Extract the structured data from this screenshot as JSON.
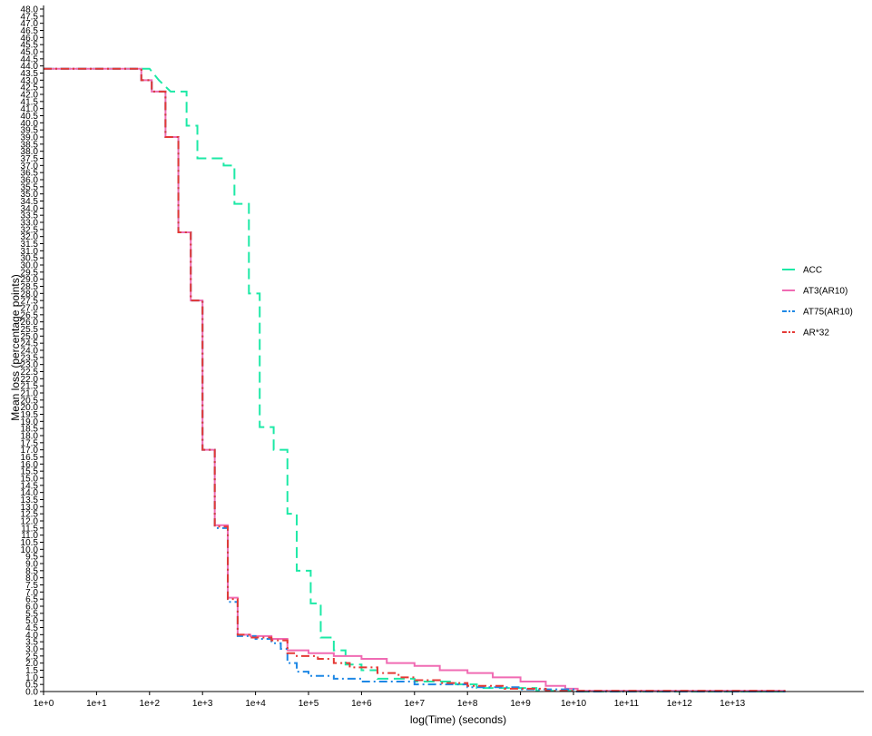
{
  "chart_data": {
    "type": "line",
    "step": true,
    "xlabel": "log(Time) (seconds)",
    "ylabel": "Mean loss (percentage points)",
    "x_scale": "log10",
    "xlim": [
      1,
      1000000000000000.0
    ],
    "ylim": [
      0,
      48
    ],
    "x_ticks": [
      {
        "value": 1,
        "label": "1e+0"
      },
      {
        "value": 10,
        "label": "1e+1"
      },
      {
        "value": 100,
        "label": "1e+2"
      },
      {
        "value": 1000,
        "label": "1e+3"
      },
      {
        "value": 10000,
        "label": "1e+4"
      },
      {
        "value": 100000,
        "label": "1e+5"
      },
      {
        "value": 1000000,
        "label": "1e+6"
      },
      {
        "value": 10000000,
        "label": "1e+7"
      },
      {
        "value": 100000000,
        "label": "1e+8"
      },
      {
        "value": 1000000000,
        "label": "1e+9"
      },
      {
        "value": 10000000000,
        "label": "1e+10"
      },
      {
        "value": 100000000000,
        "label": "1e+11"
      },
      {
        "value": 1000000000000,
        "label": "1e+12"
      },
      {
        "value": 10000000000000,
        "label": "1e+13"
      }
    ],
    "y_ticks": [
      "0.0",
      "0.5",
      "1.0",
      "1.5",
      "2.0",
      "2.5",
      "3.0",
      "3.5",
      "4.0",
      "4.5",
      "5.0",
      "5.5",
      "6.0",
      "6.5",
      "7.0",
      "7.5",
      "8.0",
      "8.5",
      "9.0",
      "9.5",
      "10.0",
      "10.5",
      "11.0",
      "11.5",
      "12.0",
      "12.5",
      "13.0",
      "13.5",
      "14.0",
      "14.5",
      "15.0",
      "15.5",
      "16.0",
      "16.5",
      "17.0",
      "17.5",
      "18.0",
      "18.5",
      "19.0",
      "19.5",
      "20.0",
      "20.5",
      "21.0",
      "21.5",
      "22.0",
      "22.5",
      "23.0",
      "23.5",
      "24.0",
      "24.5",
      "25.0",
      "25.5",
      "26.0",
      "26.5",
      "27.0",
      "27.5",
      "28.0",
      "28.5",
      "29.0",
      "29.5",
      "30.0",
      "30.5",
      "31.0",
      "31.5",
      "32.0",
      "32.5",
      "33.0",
      "33.5",
      "34.0",
      "34.5",
      "35.0",
      "35.5",
      "36.0",
      "36.5",
      "37.0",
      "37.5",
      "38.0",
      "38.5",
      "39.0",
      "39.5",
      "40.0",
      "40.5",
      "41.0",
      "41.5",
      "42.0",
      "42.5",
      "43.0",
      "43.5",
      "44.0",
      "44.5",
      "45.0",
      "45.5",
      "46.0",
      "46.5",
      "47.0",
      "47.5",
      "48.0"
    ],
    "grid": false,
    "legend_position": "right",
    "series": [
      {
        "name": "ACC",
        "color": "#1de9a6",
        "dash": "long-dash",
        "points": [
          [
            1,
            43.8
          ],
          [
            100,
            43.8
          ],
          [
            150,
            43.0
          ],
          [
            250,
            42.2
          ],
          [
            500,
            42.2
          ],
          [
            500,
            39.8
          ],
          [
            800,
            39.8
          ],
          [
            800,
            37.5
          ],
          [
            2500,
            37.5
          ],
          [
            2500,
            37.0
          ],
          [
            4000,
            37.0
          ],
          [
            4000,
            34.3
          ],
          [
            7500,
            34.3
          ],
          [
            7500,
            28.0
          ],
          [
            12000,
            28.0
          ],
          [
            12000,
            18.6
          ],
          [
            22000,
            18.6
          ],
          [
            22000,
            17.0
          ],
          [
            40000,
            17.0
          ],
          [
            40000,
            12.5
          ],
          [
            60000,
            12.5
          ],
          [
            60000,
            8.5
          ],
          [
            110000,
            8.5
          ],
          [
            110000,
            6.2
          ],
          [
            170000,
            6.2
          ],
          [
            170000,
            3.8
          ],
          [
            300000,
            3.8
          ],
          [
            300000,
            2.9
          ],
          [
            500000,
            2.9
          ],
          [
            500000,
            1.9
          ],
          [
            1000000,
            1.9
          ],
          [
            1000000,
            1.5
          ],
          [
            2000000,
            1.5
          ],
          [
            2000000,
            0.9
          ],
          [
            10000000,
            0.9
          ],
          [
            10000000,
            0.7
          ],
          [
            60000000,
            0.7
          ],
          [
            60000000,
            0.5
          ],
          [
            150000000,
            0.5
          ],
          [
            150000000,
            0.25
          ],
          [
            2000000000,
            0.25
          ],
          [
            2000000000,
            0.05
          ],
          [
            10000000000,
            0.05
          ],
          [
            10000000000,
            0.0
          ],
          [
            100000000000000,
            0.0
          ]
        ]
      },
      {
        "name": "AT3(AR10)",
        "color": "#f06bb3",
        "dash": "solid",
        "points": [
          [
            1,
            43.8
          ],
          [
            70,
            43.8
          ],
          [
            70,
            43.0
          ],
          [
            110,
            43.0
          ],
          [
            110,
            42.2
          ],
          [
            200,
            42.2
          ],
          [
            200,
            39.0
          ],
          [
            350,
            39.0
          ],
          [
            350,
            32.3
          ],
          [
            600,
            32.3
          ],
          [
            600,
            27.5
          ],
          [
            1000,
            27.5
          ],
          [
            1000,
            17.0
          ],
          [
            1700,
            17.0
          ],
          [
            1700,
            11.7
          ],
          [
            3000,
            11.7
          ],
          [
            3000,
            6.6
          ],
          [
            4600,
            6.6
          ],
          [
            4600,
            4.0
          ],
          [
            8000,
            4.0
          ],
          [
            8000,
            3.9
          ],
          [
            20000,
            3.9
          ],
          [
            20000,
            3.7
          ],
          [
            40000,
            3.7
          ],
          [
            40000,
            2.9
          ],
          [
            100000,
            2.9
          ],
          [
            100000,
            2.7
          ],
          [
            300000,
            2.7
          ],
          [
            300000,
            2.5
          ],
          [
            1000000,
            2.5
          ],
          [
            1000000,
            2.3
          ],
          [
            3000000,
            2.3
          ],
          [
            3000000,
            2.0
          ],
          [
            10000000,
            2.0
          ],
          [
            10000000,
            1.8
          ],
          [
            30000000,
            1.8
          ],
          [
            30000000,
            1.5
          ],
          [
            100000000,
            1.5
          ],
          [
            100000000,
            1.3
          ],
          [
            300000000,
            1.3
          ],
          [
            300000000,
            1.0
          ],
          [
            1000000000,
            1.0
          ],
          [
            1000000000,
            0.7
          ],
          [
            3000000000,
            0.7
          ],
          [
            3000000000,
            0.4
          ],
          [
            7000000000,
            0.4
          ],
          [
            7000000000,
            0.2
          ],
          [
            12000000000,
            0.2
          ],
          [
            12000000000,
            0.05
          ],
          [
            100000000000000,
            0.05
          ]
        ]
      },
      {
        "name": "AT75(AR10)",
        "color": "#1e88e5",
        "dash": "dash-dot",
        "points": [
          [
            1,
            43.8
          ],
          [
            70,
            43.8
          ],
          [
            70,
            43.0
          ],
          [
            110,
            43.0
          ],
          [
            110,
            42.2
          ],
          [
            200,
            42.2
          ],
          [
            200,
            39.0
          ],
          [
            350,
            39.0
          ],
          [
            350,
            32.3
          ],
          [
            600,
            32.3
          ],
          [
            600,
            27.5
          ],
          [
            1000,
            27.5
          ],
          [
            1000,
            17.0
          ],
          [
            1700,
            17.0
          ],
          [
            1700,
            11.5
          ],
          [
            3000,
            11.5
          ],
          [
            3000,
            6.3
          ],
          [
            4600,
            6.3
          ],
          [
            4600,
            3.9
          ],
          [
            10000,
            3.9
          ],
          [
            10000,
            3.7
          ],
          [
            20000,
            3.7
          ],
          [
            20000,
            3.4
          ],
          [
            30000,
            3.4
          ],
          [
            30000,
            3.0
          ],
          [
            40000,
            3.0
          ],
          [
            40000,
            2.0
          ],
          [
            60000,
            2.0
          ],
          [
            60000,
            1.4
          ],
          [
            100000,
            1.4
          ],
          [
            100000,
            1.1
          ],
          [
            300000,
            1.1
          ],
          [
            300000,
            0.9
          ],
          [
            1000000,
            0.9
          ],
          [
            1000000,
            0.7
          ],
          [
            10000000,
            0.7
          ],
          [
            10000000,
            0.5
          ],
          [
            100000000,
            0.5
          ],
          [
            100000000,
            0.3
          ],
          [
            1000000000,
            0.3
          ],
          [
            1000000000,
            0.15
          ],
          [
            10000000000,
            0.15
          ],
          [
            10000000000,
            0.0
          ],
          [
            100000000000000,
            0.0
          ]
        ]
      },
      {
        "name": "AR*32",
        "color": "#e53935",
        "dash": "dash-dot",
        "points": [
          [
            1,
            43.8
          ],
          [
            70,
            43.8
          ],
          [
            70,
            43.0
          ],
          [
            110,
            43.0
          ],
          [
            110,
            42.2
          ],
          [
            200,
            42.2
          ],
          [
            200,
            39.0
          ],
          [
            350,
            39.0
          ],
          [
            350,
            32.3
          ],
          [
            600,
            32.3
          ],
          [
            600,
            27.5
          ],
          [
            1000,
            27.5
          ],
          [
            1000,
            17.0
          ],
          [
            1700,
            17.0
          ],
          [
            1700,
            11.6
          ],
          [
            3000,
            11.6
          ],
          [
            3000,
            6.5
          ],
          [
            4600,
            6.5
          ],
          [
            4600,
            4.0
          ],
          [
            8000,
            4.0
          ],
          [
            8000,
            3.8
          ],
          [
            20000,
            3.8
          ],
          [
            20000,
            3.6
          ],
          [
            40000,
            3.6
          ],
          [
            40000,
            2.7
          ],
          [
            60000,
            2.7
          ],
          [
            60000,
            2.5
          ],
          [
            150000,
            2.5
          ],
          [
            150000,
            2.3
          ],
          [
            300000,
            2.3
          ],
          [
            300000,
            2.0
          ],
          [
            600000,
            2.0
          ],
          [
            600000,
            1.7
          ],
          [
            2000000,
            1.7
          ],
          [
            2000000,
            1.3
          ],
          [
            5000000,
            1.3
          ],
          [
            5000000,
            1.0
          ],
          [
            10000000,
            1.0
          ],
          [
            10000000,
            0.8
          ],
          [
            30000000,
            0.8
          ],
          [
            30000000,
            0.6
          ],
          [
            100000000,
            0.6
          ],
          [
            100000000,
            0.4
          ],
          [
            500000000,
            0.4
          ],
          [
            500000000,
            0.2
          ],
          [
            3000000000,
            0.2
          ],
          [
            3000000000,
            0.05
          ],
          [
            100000000000000,
            0.05
          ]
        ]
      }
    ]
  }
}
